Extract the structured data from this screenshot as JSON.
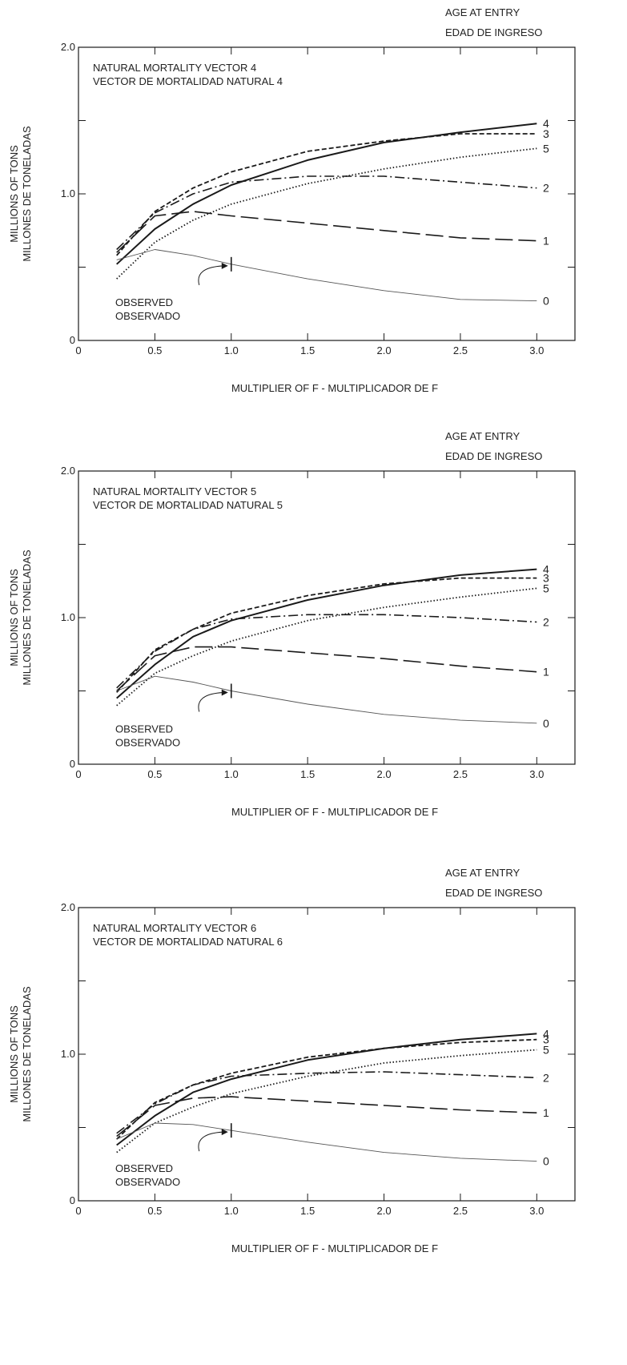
{
  "chart_data": [
    {
      "type": "line",
      "title": "NATURAL MORTALITY VECTOR 4",
      "subtitle": "VECTOR DE MORTALIDAD NATURAL 4",
      "xlabel": "MULTIPLIER OF F - MULTIPLICADOR DE F",
      "ylabel": "MILLIONS OF TONS",
      "ylabel2": "MILLONES DE TONELADAS",
      "legend_title": "AGE AT ENTRY",
      "legend_title2": "EDAD DE INGRESO",
      "xlim": [
        0,
        3.25
      ],
      "ylim": [
        0,
        2.0
      ],
      "x_ticks": [
        "0",
        "0.5",
        "1.0",
        "1.5",
        "2.0",
        "2.5",
        "3.0"
      ],
      "y_ticks": [
        "0",
        "1.0",
        "2.0"
      ],
      "annotation": [
        "OBSERVED",
        "OBSERVADO"
      ],
      "observed_x": 1.0,
      "series": [
        {
          "name": "4",
          "style": "solid",
          "x": [
            0.25,
            0.5,
            0.75,
            1.0,
            1.5,
            2.0,
            2.5,
            3.0
          ],
          "y": [
            0.52,
            0.76,
            0.93,
            1.06,
            1.23,
            1.35,
            1.42,
            1.48
          ]
        },
        {
          "name": "3",
          "style": "dashed",
          "x": [
            0.25,
            0.5,
            0.75,
            1.0,
            1.5,
            2.0,
            2.5,
            3.0
          ],
          "y": [
            0.58,
            0.88,
            1.04,
            1.15,
            1.29,
            1.36,
            1.41,
            1.41
          ]
        },
        {
          "name": "5",
          "style": "dotted",
          "x": [
            0.25,
            0.5,
            0.75,
            1.0,
            1.5,
            2.0,
            2.5,
            3.0
          ],
          "y": [
            0.42,
            0.67,
            0.82,
            0.93,
            1.07,
            1.17,
            1.25,
            1.31
          ]
        },
        {
          "name": "2",
          "style": "dashdot",
          "x": [
            0.25,
            0.5,
            0.75,
            1.0,
            1.5,
            2.0,
            2.5,
            3.0
          ],
          "y": [
            0.62,
            0.87,
            1.0,
            1.08,
            1.12,
            1.12,
            1.08,
            1.04
          ]
        },
        {
          "name": "1",
          "style": "longdash",
          "x": [
            0.25,
            0.5,
            0.75,
            1.0,
            1.5,
            2.0,
            2.5,
            3.0
          ],
          "y": [
            0.6,
            0.85,
            0.88,
            0.85,
            0.8,
            0.75,
            0.7,
            0.68
          ]
        },
        {
          "name": "0",
          "style": "thin",
          "x": [
            0.25,
            0.5,
            0.75,
            1.0,
            1.5,
            2.0,
            2.5,
            3.0
          ],
          "y": [
            0.55,
            0.62,
            0.58,
            0.52,
            0.42,
            0.34,
            0.28,
            0.27
          ]
        }
      ]
    },
    {
      "type": "line",
      "title": "NATURAL MORTALITY VECTOR 5",
      "subtitle": "VECTOR DE MORTALIDAD NATURAL 5",
      "xlabel": "MULTIPLIER OF F - MULTIPLICADOR DE F",
      "ylabel": "MILLIONS OF TONS",
      "ylabel2": "MILLONES DE TONELADAS",
      "legend_title": "AGE AT ENTRY",
      "legend_title2": "EDAD DE INGRESO",
      "xlim": [
        0,
        3.25
      ],
      "ylim": [
        0,
        2.0
      ],
      "x_ticks": [
        "0",
        "0.5",
        "1.0",
        "1.5",
        "2.0",
        "2.5",
        "3.0"
      ],
      "y_ticks": [
        "0",
        "1.0",
        "2.0"
      ],
      "annotation": [
        "OBSERVED",
        "OBSERVADO"
      ],
      "observed_x": 1.0,
      "series": [
        {
          "name": "4",
          "style": "solid",
          "x": [
            0.25,
            0.5,
            0.75,
            1.0,
            1.5,
            2.0,
            2.5,
            3.0
          ],
          "y": [
            0.45,
            0.68,
            0.87,
            0.98,
            1.12,
            1.22,
            1.29,
            1.33
          ]
        },
        {
          "name": "3",
          "style": "dashed",
          "x": [
            0.25,
            0.5,
            0.75,
            1.0,
            1.5,
            2.0,
            2.5,
            3.0
          ],
          "y": [
            0.49,
            0.78,
            0.92,
            1.03,
            1.15,
            1.23,
            1.27,
            1.27
          ]
        },
        {
          "name": "5",
          "style": "dotted",
          "x": [
            0.25,
            0.5,
            0.75,
            1.0,
            1.5,
            2.0,
            2.5,
            3.0
          ],
          "y": [
            0.4,
            0.62,
            0.74,
            0.84,
            0.98,
            1.07,
            1.14,
            1.2
          ]
        },
        {
          "name": "2",
          "style": "dashdot",
          "x": [
            0.25,
            0.5,
            0.75,
            1.0,
            1.5,
            2.0,
            2.5,
            3.0
          ],
          "y": [
            0.52,
            0.77,
            0.92,
            0.99,
            1.02,
            1.02,
            1.0,
            0.97
          ]
        },
        {
          "name": "1",
          "style": "longdash",
          "x": [
            0.25,
            0.5,
            0.75,
            1.0,
            1.5,
            2.0,
            2.5,
            3.0
          ],
          "y": [
            0.5,
            0.74,
            0.8,
            0.8,
            0.76,
            0.72,
            0.67,
            0.63
          ]
        },
        {
          "name": "0",
          "style": "thin",
          "x": [
            0.25,
            0.5,
            0.75,
            1.0,
            1.5,
            2.0,
            2.5,
            3.0
          ],
          "y": [
            0.5,
            0.6,
            0.56,
            0.5,
            0.41,
            0.34,
            0.3,
            0.28
          ]
        }
      ]
    },
    {
      "type": "line",
      "title": "NATURAL MORTALITY VECTOR 6",
      "subtitle": "VECTOR DE MORTALIDAD NATURAL 6",
      "xlabel": "MULTIPLIER OF F - MULTIPLICADOR DE F",
      "ylabel": "MILLIONS OF TONS",
      "ylabel2": "MILLONES DE TONELADAS",
      "legend_title": "AGE AT ENTRY",
      "legend_title2": "EDAD DE INGRESO",
      "xlim": [
        0,
        3.25
      ],
      "ylim": [
        0,
        2.0
      ],
      "x_ticks": [
        "0",
        "0.5",
        "1.0",
        "1.5",
        "2.0",
        "2.5",
        "3.0"
      ],
      "y_ticks": [
        "0",
        "1.0",
        "2.0"
      ],
      "annotation": [
        "OBSERVED",
        "OBSERVADO"
      ],
      "observed_x": 1.0,
      "series": [
        {
          "name": "4",
          "style": "solid",
          "x": [
            0.25,
            0.5,
            0.75,
            1.0,
            1.5,
            2.0,
            2.5,
            3.0
          ],
          "y": [
            0.38,
            0.58,
            0.74,
            0.83,
            0.96,
            1.04,
            1.1,
            1.14
          ]
        },
        {
          "name": "3",
          "style": "dashed",
          "x": [
            0.25,
            0.5,
            0.75,
            1.0,
            1.5,
            2.0,
            2.5,
            3.0
          ],
          "y": [
            0.42,
            0.67,
            0.79,
            0.87,
            0.98,
            1.04,
            1.08,
            1.1
          ]
        },
        {
          "name": "5",
          "style": "dotted",
          "x": [
            0.25,
            0.5,
            0.75,
            1.0,
            1.5,
            2.0,
            2.5,
            3.0
          ],
          "y": [
            0.33,
            0.53,
            0.64,
            0.73,
            0.85,
            0.94,
            0.99,
            1.03
          ]
        },
        {
          "name": "2",
          "style": "dashdot",
          "x": [
            0.25,
            0.5,
            0.75,
            1.0,
            1.5,
            2.0,
            2.5,
            3.0
          ],
          "y": [
            0.46,
            0.66,
            0.79,
            0.85,
            0.87,
            0.88,
            0.86,
            0.84
          ]
        },
        {
          "name": "1",
          "style": "longdash",
          "x": [
            0.25,
            0.5,
            0.75,
            1.0,
            1.5,
            2.0,
            2.5,
            3.0
          ],
          "y": [
            0.44,
            0.65,
            0.7,
            0.71,
            0.68,
            0.65,
            0.62,
            0.6
          ]
        },
        {
          "name": "0",
          "style": "thin",
          "x": [
            0.25,
            0.5,
            0.75,
            1.0,
            1.5,
            2.0,
            2.5,
            3.0
          ],
          "y": [
            0.42,
            0.53,
            0.52,
            0.48,
            0.4,
            0.33,
            0.29,
            0.27
          ]
        }
      ]
    }
  ]
}
